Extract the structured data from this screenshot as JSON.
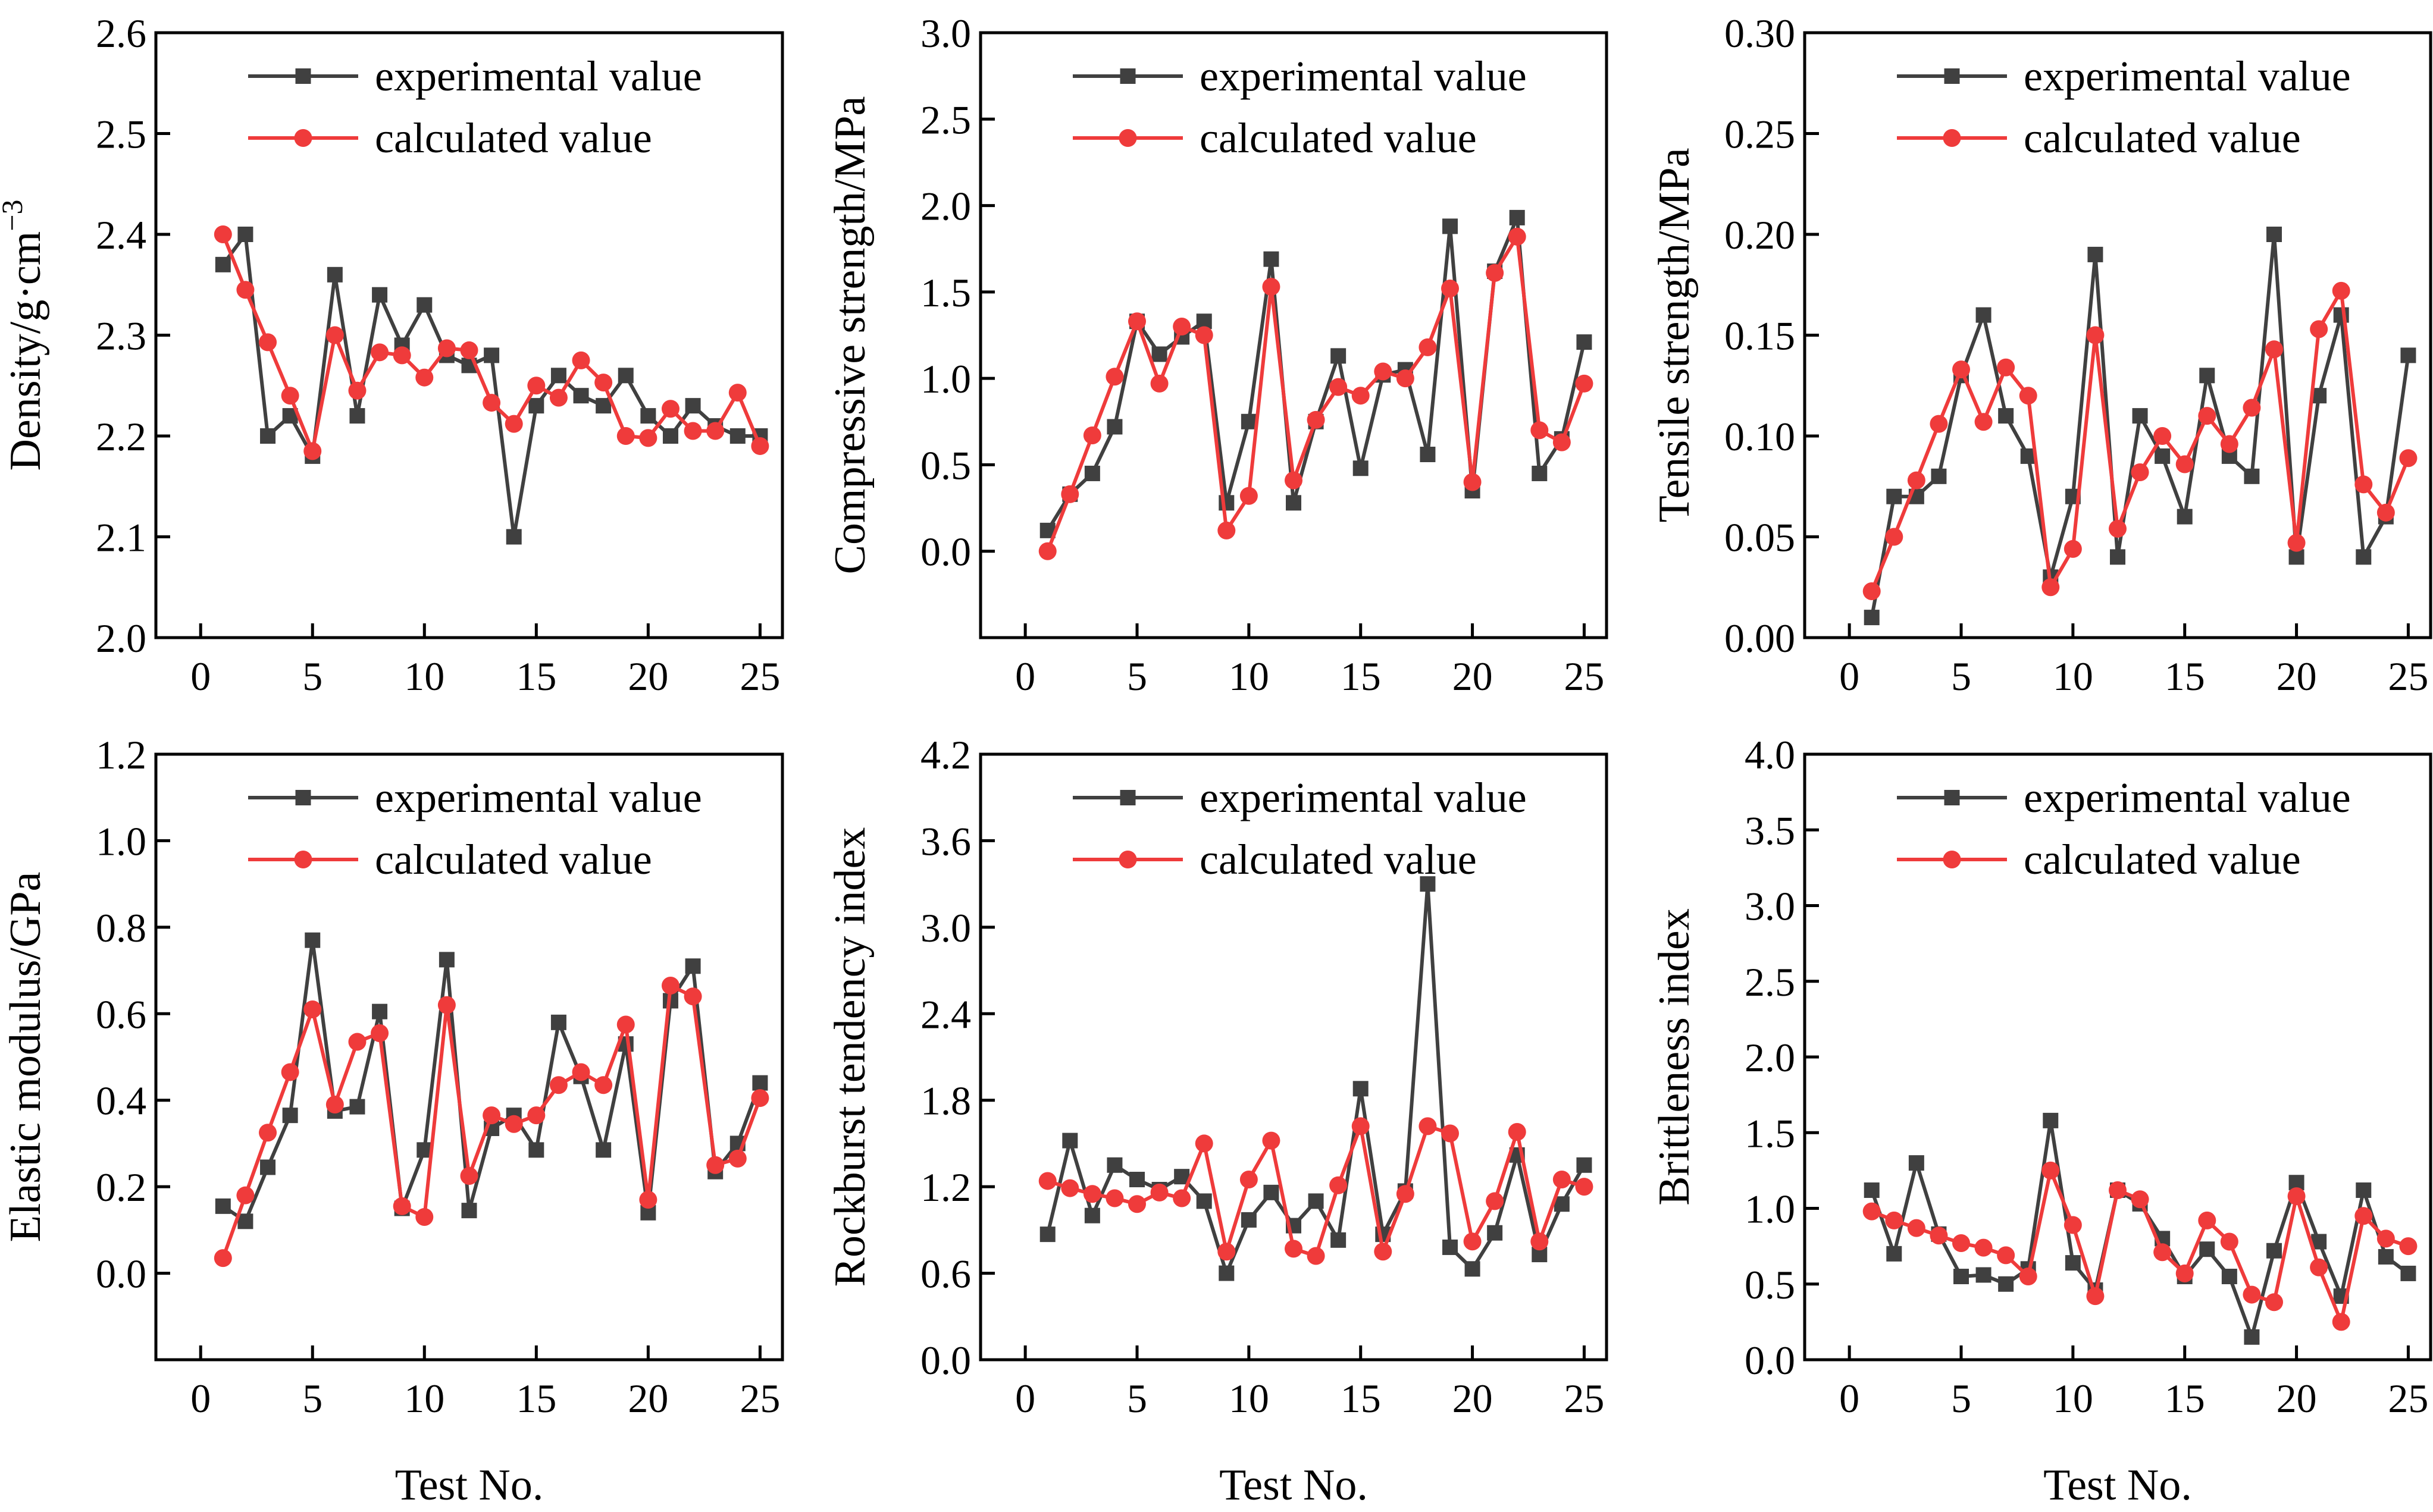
{
  "figure": {
    "shared_xlabel": "Test No."
  },
  "colors": {
    "experimental": "#404040",
    "calculated": "#ef3b3b",
    "axis": "#000000"
  },
  "legend": {
    "experimental": "experimental value",
    "calculated": "calculated value"
  },
  "chart_data": [
    {
      "id": "density",
      "type": "line",
      "ylabel": "Density/g·cm",
      "ylabel_sup": "−3",
      "xlabel": "",
      "xlim": [
        -2,
        26
      ],
      "ylim": [
        2.0,
        2.6
      ],
      "xticks": [
        0,
        5,
        10,
        15,
        20,
        25
      ],
      "xtick_labels": [
        "0",
        "5",
        "10",
        "15",
        "20",
        "25"
      ],
      "yticks": [
        2.0,
        2.1,
        2.2,
        2.3,
        2.4,
        2.5,
        2.6
      ],
      "ytick_labels": [
        "2.0",
        "2.1",
        "2.2",
        "2.3",
        "2.4",
        "2.5",
        "2.6"
      ],
      "x": [
        1,
        2,
        3,
        4,
        5,
        6,
        7,
        8,
        9,
        10,
        11,
        12,
        13,
        14,
        15,
        16,
        17,
        18,
        19,
        20,
        21,
        22,
        23,
        24,
        25
      ],
      "series": [
        {
          "name": "experimental value",
          "marker": "square",
          "values": [
            2.37,
            2.4,
            2.2,
            2.22,
            2.18,
            2.36,
            2.22,
            2.34,
            2.29,
            2.33,
            2.28,
            2.27,
            2.28,
            2.1,
            2.23,
            2.26,
            2.24,
            2.23,
            2.26,
            2.22,
            2.2,
            2.23,
            2.21,
            2.2,
            2.2
          ]
        },
        {
          "name": "calculated value",
          "marker": "circle",
          "values": [
            2.4,
            2.345,
            2.293,
            2.24,
            2.185,
            2.3,
            2.245,
            2.283,
            2.28,
            2.258,
            2.287,
            2.285,
            2.233,
            2.212,
            2.25,
            2.238,
            2.275,
            2.253,
            2.2,
            2.198,
            2.227,
            2.205,
            2.205,
            2.243,
            2.19
          ]
        }
      ]
    },
    {
      "id": "compressive",
      "type": "line",
      "ylabel": "Compressive strength/MPa",
      "xlabel": "",
      "xlim": [
        -2,
        26
      ],
      "ylim": [
        -0.5,
        3.0
      ],
      "xticks": [
        0,
        5,
        10,
        15,
        20,
        25
      ],
      "xtick_labels": [
        "0",
        "5",
        "10",
        "15",
        "20",
        "25"
      ],
      "yticks": [
        0.0,
        0.5,
        1.0,
        1.5,
        2.0,
        2.5,
        3.0
      ],
      "ytick_labels": [
        "0.0",
        "0.5",
        "1.0",
        "1.5",
        "2.0",
        "2.5",
        "3.0"
      ],
      "x": [
        1,
        2,
        3,
        4,
        5,
        6,
        7,
        8,
        9,
        10,
        11,
        12,
        13,
        14,
        15,
        16,
        17,
        18,
        19,
        20,
        21,
        22,
        23,
        24,
        25
      ],
      "series": [
        {
          "name": "experimental value",
          "marker": "square",
          "values": [
            0.12,
            0.33,
            0.45,
            0.72,
            1.33,
            1.14,
            1.24,
            1.33,
            0.28,
            0.75,
            1.69,
            0.28,
            0.75,
            1.13,
            0.48,
            1.02,
            1.05,
            0.56,
            1.88,
            0.35,
            1.62,
            1.93,
            0.45,
            0.65,
            1.21
          ]
        },
        {
          "name": "calculated value",
          "marker": "circle",
          "values": [
            0.0,
            0.33,
            0.67,
            1.01,
            1.33,
            0.97,
            1.3,
            1.25,
            0.12,
            0.32,
            1.53,
            0.41,
            0.76,
            0.95,
            0.9,
            1.04,
            1.0,
            1.18,
            1.52,
            0.4,
            1.61,
            1.82,
            0.7,
            0.63,
            0.97
          ]
        }
      ]
    },
    {
      "id": "tensile",
      "type": "line",
      "ylabel": "Tensile strength/MPa",
      "xlabel": "",
      "xlim": [
        -2,
        26
      ],
      "ylim": [
        0.0,
        0.3
      ],
      "xticks": [
        0,
        5,
        10,
        15,
        20,
        25
      ],
      "xtick_labels": [
        "0",
        "5",
        "10",
        "15",
        "20",
        "25"
      ],
      "yticks": [
        0.0,
        0.05,
        0.1,
        0.15,
        0.2,
        0.25,
        0.3
      ],
      "ytick_labels": [
        "0.00",
        "0.05",
        "0.10",
        "0.15",
        "0.20",
        "0.25",
        "0.30"
      ],
      "x": [
        1,
        2,
        3,
        4,
        5,
        6,
        7,
        8,
        9,
        10,
        11,
        12,
        13,
        14,
        15,
        16,
        17,
        18,
        19,
        20,
        21,
        22,
        23,
        24,
        25
      ],
      "series": [
        {
          "name": "experimental value",
          "marker": "square",
          "values": [
            0.01,
            0.07,
            0.07,
            0.08,
            0.13,
            0.16,
            0.11,
            0.09,
            0.03,
            0.07,
            0.19,
            0.04,
            0.11,
            0.09,
            0.06,
            0.13,
            0.09,
            0.08,
            0.2,
            0.04,
            0.12,
            0.16,
            0.04,
            0.06,
            0.14
          ]
        },
        {
          "name": "calculated value",
          "marker": "circle",
          "values": [
            0.023,
            0.05,
            0.078,
            0.106,
            0.133,
            0.107,
            0.134,
            0.12,
            0.025,
            0.044,
            0.15,
            0.054,
            0.082,
            0.1,
            0.086,
            0.11,
            0.096,
            0.114,
            0.143,
            0.047,
            0.153,
            0.172,
            0.076,
            0.062,
            0.089
          ]
        }
      ]
    },
    {
      "id": "elastic",
      "type": "line",
      "ylabel": "Elastic modulus/GPa",
      "xlabel": "Test No.",
      "xlim": [
        -2,
        26
      ],
      "ylim": [
        -0.2,
        1.2
      ],
      "xticks": [
        0,
        5,
        10,
        15,
        20,
        25
      ],
      "xtick_labels": [
        "0",
        "5",
        "10",
        "15",
        "20",
        "25"
      ],
      "yticks": [
        0.0,
        0.2,
        0.4,
        0.6,
        0.8,
        1.0,
        1.2
      ],
      "ytick_labels": [
        "0.0",
        "0.2",
        "0.4",
        "0.6",
        "0.8",
        "1.0",
        "1.2"
      ],
      "x": [
        1,
        2,
        3,
        4,
        5,
        6,
        7,
        8,
        9,
        10,
        11,
        12,
        13,
        14,
        15,
        16,
        17,
        18,
        19,
        20,
        21,
        22,
        23,
        24,
        25
      ],
      "series": [
        {
          "name": "experimental value",
          "marker": "square",
          "values": [
            0.155,
            0.12,
            0.245,
            0.365,
            0.77,
            0.375,
            0.385,
            0.605,
            0.15,
            0.285,
            0.725,
            0.145,
            0.335,
            0.365,
            0.285,
            0.58,
            0.455,
            0.285,
            0.53,
            0.14,
            0.63,
            0.71,
            0.235,
            0.3,
            0.44
          ]
        },
        {
          "name": "calculated value",
          "marker": "circle",
          "values": [
            0.035,
            0.18,
            0.325,
            0.465,
            0.61,
            0.39,
            0.535,
            0.555,
            0.155,
            0.13,
            0.62,
            0.225,
            0.365,
            0.345,
            0.365,
            0.435,
            0.465,
            0.435,
            0.575,
            0.17,
            0.665,
            0.64,
            0.25,
            0.265,
            0.405
          ]
        }
      ]
    },
    {
      "id": "rockburst",
      "type": "line",
      "ylabel": "Rockburst tendency index",
      "xlabel": "Test No.",
      "xlim": [
        -2,
        26
      ],
      "ylim": [
        0.0,
        4.2
      ],
      "xticks": [
        0,
        5,
        10,
        15,
        20,
        25
      ],
      "xtick_labels": [
        "0",
        "5",
        "10",
        "15",
        "20",
        "25"
      ],
      "yticks": [
        0.0,
        0.6,
        1.2,
        1.8,
        2.4,
        3.0,
        3.6,
        4.2
      ],
      "ytick_labels": [
        "0.0",
        "0.6",
        "1.2",
        "1.8",
        "2.4",
        "3.0",
        "3.6",
        "4.2"
      ],
      "x": [
        1,
        2,
        3,
        4,
        5,
        6,
        7,
        8,
        9,
        10,
        11,
        12,
        13,
        14,
        15,
        16,
        17,
        18,
        19,
        20,
        21,
        22,
        23,
        24,
        25
      ],
      "series": [
        {
          "name": "experimental value",
          "marker": "square",
          "values": [
            0.87,
            1.52,
            1.0,
            1.35,
            1.25,
            1.18,
            1.27,
            1.1,
            0.6,
            0.97,
            1.16,
            0.93,
            1.1,
            0.83,
            1.88,
            0.87,
            1.17,
            3.3,
            0.78,
            0.63,
            0.88,
            1.42,
            0.73,
            1.08,
            1.35
          ]
        },
        {
          "name": "calculated value",
          "marker": "circle",
          "values": [
            1.24,
            1.19,
            1.15,
            1.12,
            1.08,
            1.16,
            1.12,
            1.5,
            0.75,
            1.25,
            1.52,
            0.77,
            0.72,
            1.21,
            1.62,
            0.75,
            1.15,
            1.62,
            1.57,
            0.82,
            1.1,
            1.58,
            0.82,
            1.25,
            1.2
          ]
        }
      ]
    },
    {
      "id": "brittleness",
      "type": "line",
      "ylabel": "Brittleness index",
      "xlabel": "Test No.",
      "xlim": [
        -2,
        26
      ],
      "ylim": [
        0.0,
        4.0
      ],
      "xticks": [
        0,
        5,
        10,
        15,
        20,
        25
      ],
      "xtick_labels": [
        "0",
        "5",
        "10",
        "15",
        "20",
        "25"
      ],
      "yticks": [
        0.0,
        0.5,
        1.0,
        1.5,
        2.0,
        2.5,
        3.0,
        3.5,
        4.0
      ],
      "ytick_labels": [
        "0.0",
        "0.5",
        "1.0",
        "1.5",
        "2.0",
        "2.5",
        "3.0",
        "3.5",
        "4.0"
      ],
      "x": [
        1,
        2,
        3,
        4,
        5,
        6,
        7,
        8,
        9,
        10,
        11,
        12,
        13,
        14,
        15,
        16,
        17,
        18,
        19,
        20,
        21,
        22,
        23,
        24,
        25
      ],
      "series": [
        {
          "name": "experimental value",
          "marker": "square",
          "values": [
            1.12,
            0.7,
            1.3,
            0.83,
            0.55,
            0.56,
            0.5,
            0.6,
            1.58,
            0.64,
            0.46,
            1.12,
            1.03,
            0.8,
            0.55,
            0.73,
            0.55,
            0.15,
            0.72,
            1.17,
            0.78,
            0.42,
            1.12,
            0.68,
            0.57
          ]
        },
        {
          "name": "calculated value",
          "marker": "circle",
          "values": [
            0.98,
            0.92,
            0.87,
            0.82,
            0.77,
            0.74,
            0.69,
            0.55,
            1.25,
            0.89,
            0.42,
            1.12,
            1.06,
            0.71,
            0.57,
            0.92,
            0.78,
            0.43,
            0.38,
            1.08,
            0.61,
            0.25,
            0.95,
            0.8,
            0.75
          ]
        }
      ]
    }
  ]
}
